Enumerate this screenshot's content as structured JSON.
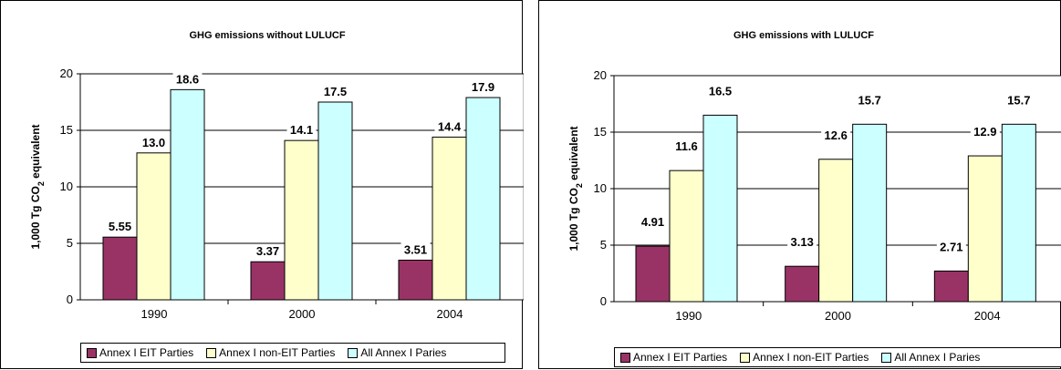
{
  "chart_data": [
    {
      "type": "bar",
      "title": "GHG emissions without LULUCF",
      "ylabel": "1,000 Tg CO2 equivalent",
      "ylim": [
        0,
        20
      ],
      "yticks": [
        0,
        5,
        10,
        15,
        20
      ],
      "categories": [
        "1990",
        "2000",
        "2004"
      ],
      "series": [
        {
          "name": "Annex I EIT Parties",
          "values": [
            5.55,
            3.37,
            3.51
          ],
          "labels": [
            "5.55",
            "3.37",
            "3.51"
          ],
          "color": "#993366"
        },
        {
          "name": "Annex I non-EIT Parties",
          "values": [
            13.0,
            14.1,
            14.4
          ],
          "labels": [
            "13.0",
            "14.1",
            "14.4"
          ],
          "color": "#FFFFCC"
        },
        {
          "name": "All Annex I Paries",
          "values": [
            18.6,
            17.5,
            17.9
          ],
          "labels": [
            "18.6",
            "17.5",
            "17.9"
          ],
          "color": "#CCFFFF"
        }
      ],
      "grid": true,
      "legend_position": "bottom"
    },
    {
      "type": "bar",
      "title": "GHG emissions with LULUCF",
      "ylabel": "1,000 Tg CO2 equivalent",
      "ylim": [
        0,
        20
      ],
      "yticks": [
        0,
        5,
        10,
        15,
        20
      ],
      "categories": [
        "1990",
        "2000",
        "2004"
      ],
      "series": [
        {
          "name": "Annex I EIT Parties",
          "values": [
            4.91,
            3.13,
            2.71
          ],
          "labels": [
            "4.91",
            "3.13",
            "2.71"
          ],
          "color": "#993366"
        },
        {
          "name": "Annex I non-EIT Parties",
          "values": [
            11.6,
            12.6,
            12.9
          ],
          "labels": [
            "11.6",
            "12.6",
            "12.9"
          ],
          "color": "#FFFFCC"
        },
        {
          "name": "All Annex I Paries",
          "values": [
            16.5,
            15.7,
            15.7
          ],
          "labels": [
            "16.5",
            "15.7",
            "15.7"
          ],
          "color": "#CCFFFF"
        }
      ],
      "grid": true,
      "legend_position": "bottom"
    }
  ]
}
